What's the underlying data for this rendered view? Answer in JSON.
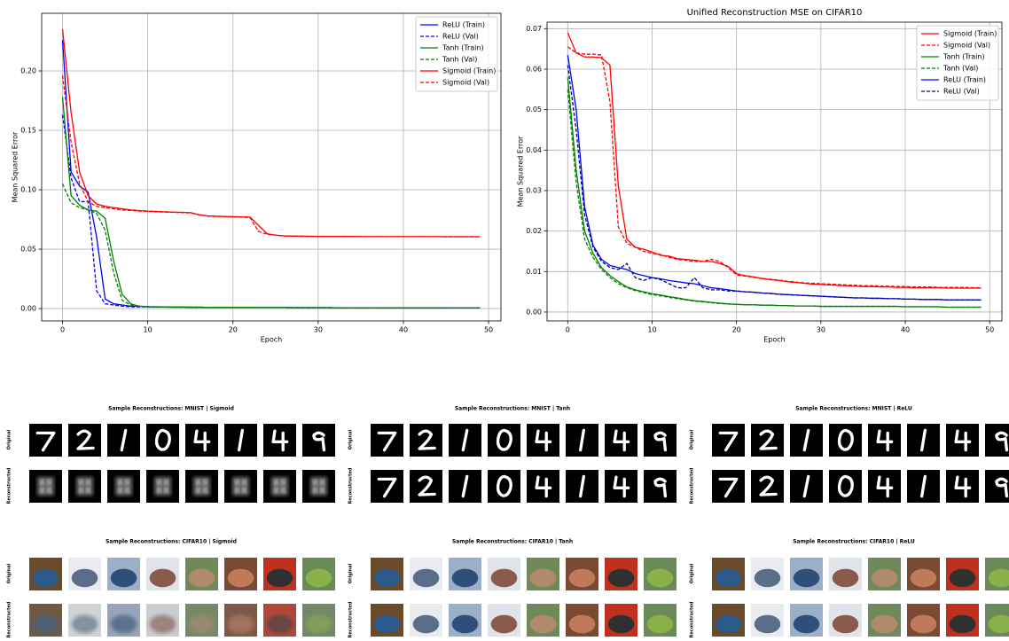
{
  "chart_data": [
    {
      "type": "line",
      "xlabel": "Epoch",
      "ylabel": "Mean Squared Error",
      "x": [
        0,
        1,
        2,
        3,
        4,
        5,
        6,
        7,
        8,
        9,
        10,
        11,
        12,
        13,
        14,
        15,
        16,
        17,
        18,
        19,
        20,
        21,
        22,
        23,
        24,
        25,
        26,
        27,
        28,
        29,
        30,
        31,
        32,
        33,
        34,
        35,
        36,
        37,
        38,
        39,
        40,
        41,
        42,
        43,
        44,
        45,
        46,
        47,
        48,
        49
      ],
      "xlim": [
        -2.45,
        51.45
      ],
      "xticks": [
        0,
        10,
        20,
        30,
        40,
        50
      ],
      "ylim": [
        -0.0104,
        0.2485
      ],
      "yticks": [
        {
          "value": 0,
          "label": "0.00"
        },
        0.05,
        {
          "value": 0.1,
          "label": "0.10"
        },
        0.15,
        {
          "value": 0.2,
          "label": "0.20"
        }
      ],
      "grid": true,
      "legend": "upper right",
      "series": [
        {
          "name": "ReLU (Train)",
          "color": "#0000ff",
          "linestyle": "solid",
          "values": [
            0.226,
            0.115,
            0.103,
            0.098,
            0.06,
            0.008,
            0.004,
            0.003,
            0.002,
            0.002,
            0.0015,
            0.0014,
            0.0013,
            0.0012,
            0.0012,
            0.0011,
            0.0011,
            0.0011,
            0.001,
            0.001,
            0.001,
            0.001,
            0.001,
            0.0009,
            0.0009,
            0.0009,
            0.0009,
            0.0008,
            0.0008,
            0.0008,
            0.0008,
            0.0008,
            0.0007,
            0.0007,
            0.0007,
            0.0007,
            0.0007,
            0.0007,
            0.0006,
            0.0006,
            0.0006,
            0.0006,
            0.0006,
            0.0006,
            0.0006,
            0.0005,
            0.0005,
            0.0005,
            0.0005,
            0.0005
          ]
        },
        {
          "name": "ReLU (Val)",
          "color": "#0000ff",
          "linestyle": "dashed",
          "values": [
            0.163,
            0.11,
            0.09,
            0.09,
            0.015,
            0.004,
            0.003,
            0.002,
            0.0015,
            0.0014,
            0.0015,
            0.0014,
            0.0013,
            0.0012,
            0.0012,
            0.0011,
            0.0011,
            0.0011,
            0.001,
            0.001,
            0.001,
            0.001,
            0.001,
            0.0009,
            0.0009,
            0.0009,
            0.0009,
            0.0008,
            0.0008,
            0.0008,
            0.0008,
            0.0008,
            0.0007,
            0.0007,
            0.0007,
            0.0007,
            0.0007,
            0.0007,
            0.0006,
            0.0006,
            0.0006,
            0.0006,
            0.0006,
            0.0006,
            0.0006,
            0.0005,
            0.0005,
            0.0005,
            0.0005,
            0.0005
          ]
        },
        {
          "name": "Tanh (Train)",
          "color": "#008000",
          "linestyle": "solid",
          "values": [
            0.178,
            0.095,
            0.087,
            0.083,
            0.082,
            0.076,
            0.04,
            0.012,
            0.004,
            0.002,
            0.0016,
            0.0015,
            0.0014,
            0.0013,
            0.0013,
            0.0012,
            0.0012,
            0.0011,
            0.0011,
            0.001,
            0.001,
            0.001,
            0.001,
            0.0009,
            0.0009,
            0.0009,
            0.0009,
            0.0008,
            0.0008,
            0.0008,
            0.0008,
            0.0008,
            0.0007,
            0.0007,
            0.0007,
            0.0007,
            0.0007,
            0.0007,
            0.0006,
            0.0006,
            0.0006,
            0.0006,
            0.0006,
            0.0006,
            0.0006,
            0.0005,
            0.0005,
            0.0005,
            0.0005,
            0.0005
          ]
        },
        {
          "name": "Tanh (Val)",
          "color": "#008000",
          "linestyle": "dashed",
          "values": [
            0.105,
            0.089,
            0.085,
            0.083,
            0.08,
            0.066,
            0.03,
            0.007,
            0.003,
            0.002,
            0.0016,
            0.0015,
            0.0014,
            0.0013,
            0.0013,
            0.0012,
            0.0012,
            0.0011,
            0.0011,
            0.001,
            0.001,
            0.001,
            0.001,
            0.0009,
            0.0009,
            0.0009,
            0.0009,
            0.0008,
            0.0008,
            0.0008,
            0.0008,
            0.0008,
            0.0007,
            0.0007,
            0.0007,
            0.0007,
            0.0007,
            0.0007,
            0.0006,
            0.0006,
            0.0006,
            0.0006,
            0.0006,
            0.0006,
            0.0006,
            0.0005,
            0.0005,
            0.0005,
            0.0005,
            0.0005
          ]
        },
        {
          "name": "Sigmoid (Train)",
          "color": "#ff0000",
          "linestyle": "solid",
          "values": [
            0.235,
            0.165,
            0.115,
            0.095,
            0.088,
            0.086,
            0.085,
            0.084,
            0.083,
            0.0825,
            0.082,
            0.0817,
            0.0814,
            0.0812,
            0.081,
            0.0808,
            0.079,
            0.078,
            0.0778,
            0.0775,
            0.0773,
            0.0772,
            0.077,
            0.07,
            0.063,
            0.0618,
            0.0612,
            0.061,
            0.0609,
            0.0608,
            0.0607,
            0.0607,
            0.0607,
            0.0607,
            0.0607,
            0.0606,
            0.0606,
            0.0606,
            0.0606,
            0.0606,
            0.0606,
            0.0606,
            0.0606,
            0.0606,
            0.0606,
            0.0605,
            0.0605,
            0.0605,
            0.0605,
            0.0605
          ]
        },
        {
          "name": "Sigmoid (Val)",
          "color": "#ff0000",
          "linestyle": "dashed",
          "values": [
            0.196,
            0.14,
            0.105,
            0.09,
            0.086,
            0.085,
            0.084,
            0.083,
            0.0825,
            0.082,
            0.0818,
            0.0815,
            0.0812,
            0.081,
            0.0808,
            0.0805,
            0.079,
            0.0778,
            0.0776,
            0.0774,
            0.0772,
            0.077,
            0.0765,
            0.065,
            0.0625,
            0.0618,
            0.0612,
            0.061,
            0.0609,
            0.0608,
            0.0607,
            0.0607,
            0.0607,
            0.0607,
            0.0607,
            0.0606,
            0.0606,
            0.0606,
            0.0606,
            0.0606,
            0.0606,
            0.0606,
            0.0606,
            0.0606,
            0.0606,
            0.0605,
            0.0605,
            0.0605,
            0.0605,
            0.0605
          ]
        }
      ]
    },
    {
      "type": "line",
      "title": "Unified Reconstruction MSE on CIFAR10",
      "xlabel": "Epoch",
      "ylabel": "Mean Squared Error",
      "x": [
        0,
        1,
        2,
        3,
        4,
        5,
        6,
        7,
        8,
        9,
        10,
        11,
        12,
        13,
        14,
        15,
        16,
        17,
        18,
        19,
        20,
        21,
        22,
        23,
        24,
        25,
        26,
        27,
        28,
        29,
        30,
        31,
        32,
        33,
        34,
        35,
        36,
        37,
        38,
        39,
        40,
        41,
        42,
        43,
        44,
        45,
        46,
        47,
        48,
        49
      ],
      "xlim": [
        -2.45,
        51.45
      ],
      "xticks": [
        0,
        10,
        20,
        30,
        40,
        50
      ],
      "ylim": [
        -0.0022,
        0.0716
      ],
      "yticks": [
        {
          "value": 0,
          "label": "0.00"
        },
        0.01,
        0.02,
        0.03,
        0.04,
        0.05,
        0.06,
        0.07
      ],
      "grid": true,
      "legend": "upper right",
      "series": [
        {
          "name": "Sigmoid (Train)",
          "color": "#ff0000",
          "linestyle": "solid",
          "values": [
            0.069,
            0.064,
            0.063,
            0.063,
            0.0628,
            0.061,
            0.031,
            0.018,
            0.016,
            0.0155,
            0.0148,
            0.014,
            0.0138,
            0.0132,
            0.013,
            0.0128,
            0.0125,
            0.0125,
            0.012,
            0.0113,
            0.0095,
            0.009,
            0.0087,
            0.0083,
            0.008,
            0.0078,
            0.0075,
            0.0073,
            0.0071,
            0.0069,
            0.0068,
            0.0067,
            0.0066,
            0.0065,
            0.0064,
            0.0063,
            0.0063,
            0.0062,
            0.0062,
            0.0061,
            0.0061,
            0.006,
            0.006,
            0.006,
            0.006,
            0.0059,
            0.0059,
            0.0059,
            0.0059,
            0.0059
          ]
        },
        {
          "name": "Sigmoid (Val)",
          "color": "#ff0000",
          "linestyle": "dashed",
          "values": [
            0.0655,
            0.064,
            0.0637,
            0.0637,
            0.0635,
            0.052,
            0.021,
            0.017,
            0.016,
            0.015,
            0.0145,
            0.0142,
            0.0135,
            0.013,
            0.0128,
            0.0125,
            0.0125,
            0.013,
            0.0125,
            0.011,
            0.0092,
            0.0089,
            0.0086,
            0.0083,
            0.0081,
            0.0079,
            0.0076,
            0.0074,
            0.0072,
            0.0071,
            0.007,
            0.0069,
            0.0068,
            0.0067,
            0.0066,
            0.0065,
            0.0065,
            0.0064,
            0.0064,
            0.0063,
            0.0063,
            0.0062,
            0.0062,
            0.0062,
            0.0061,
            0.0061,
            0.0061,
            0.0061,
            0.006,
            0.006
          ]
        },
        {
          "name": "Tanh (Train)",
          "color": "#008000",
          "linestyle": "solid",
          "values": [
            0.058,
            0.035,
            0.02,
            0.0145,
            0.011,
            0.009,
            0.0075,
            0.0062,
            0.0055,
            0.005,
            0.0045,
            0.0042,
            0.0038,
            0.0035,
            0.0031,
            0.0028,
            0.0026,
            0.0024,
            0.0022,
            0.002,
            0.0019,
            0.0018,
            0.0018,
            0.0017,
            0.0017,
            0.0016,
            0.0016,
            0.0015,
            0.0015,
            0.0015,
            0.0014,
            0.0014,
            0.0014,
            0.0014,
            0.0014,
            0.0014,
            0.0014,
            0.0014,
            0.0014,
            0.0014,
            0.0013,
            0.0013,
            0.0013,
            0.0013,
            0.0013,
            0.0012,
            0.0012,
            0.0012,
            0.0012,
            0.0012
          ]
        },
        {
          "name": "Tanh (Val)",
          "color": "#008000",
          "linestyle": "dashed",
          "values": [
            0.055,
            0.032,
            0.018,
            0.0135,
            0.0105,
            0.0085,
            0.007,
            0.006,
            0.0053,
            0.0048,
            0.0043,
            0.004,
            0.0036,
            0.0033,
            0.003,
            0.0027,
            0.0025,
            0.0023,
            0.0021,
            0.002,
            0.0019,
            0.0018,
            0.0018,
            0.0017,
            0.0017,
            0.0016,
            0.0016,
            0.0015,
            0.0015,
            0.0015,
            0.0014,
            0.0014,
            0.0014,
            0.0014,
            0.0014,
            0.0014,
            0.0014,
            0.0014,
            0.0014,
            0.0014,
            0.0013,
            0.0013,
            0.0013,
            0.0013,
            0.0013,
            0.0012,
            0.0012,
            0.0012,
            0.0012,
            0.0012
          ]
        },
        {
          "name": "ReLU (Train)",
          "color": "#0000ff",
          "linestyle": "solid",
          "values": [
            0.0635,
            0.05,
            0.026,
            0.0165,
            0.013,
            0.0115,
            0.011,
            0.0105,
            0.0095,
            0.009,
            0.0085,
            0.0082,
            0.0078,
            0.0075,
            0.0072,
            0.007,
            0.0065,
            0.006,
            0.0058,
            0.0055,
            0.0052,
            0.005,
            0.0049,
            0.0047,
            0.0046,
            0.0044,
            0.0043,
            0.0042,
            0.0041,
            0.004,
            0.0039,
            0.0038,
            0.0037,
            0.0036,
            0.0035,
            0.0035,
            0.0034,
            0.0034,
            0.0033,
            0.0033,
            0.0032,
            0.0032,
            0.0031,
            0.0031,
            0.0031,
            0.003,
            0.003,
            0.003,
            0.003,
            0.003
          ]
        },
        {
          "name": "ReLU (Val)",
          "color": "#00008b",
          "linestyle": "dashed",
          "values": [
            0.061,
            0.045,
            0.024,
            0.016,
            0.0125,
            0.011,
            0.0105,
            0.012,
            0.0085,
            0.0078,
            0.0085,
            0.008,
            0.007,
            0.006,
            0.006,
            0.0085,
            0.006,
            0.0055,
            0.0055,
            0.0052,
            0.0052,
            0.005,
            0.0049,
            0.0047,
            0.0046,
            0.0044,
            0.0043,
            0.0042,
            0.0041,
            0.004,
            0.0039,
            0.0038,
            0.0037,
            0.0036,
            0.0035,
            0.0035,
            0.0034,
            0.0034,
            0.0033,
            0.0033,
            0.0032,
            0.0032,
            0.0031,
            0.0031,
            0.0031,
            0.003,
            0.003,
            0.003,
            0.003,
            0.003
          ]
        }
      ]
    }
  ],
  "panels": [
    {
      "title": "Sample Reconstructions: MNIST | Sigmoid",
      "rows": [
        "Original",
        "Reconstructed"
      ]
    },
    {
      "title": "Sample Reconstructions: MNIST | Tanh",
      "rows": [
        "Original",
        "Reconstructed"
      ]
    },
    {
      "title": "Sample Reconstructions: MNIST | ReLU",
      "rows": [
        "Original",
        "Reconstructed"
      ]
    },
    {
      "title": "Sample Reconstructions: CIFAR10 | Sigmoid",
      "rows": [
        "Original",
        "Reconstructed"
      ]
    },
    {
      "title": "Sample Reconstructions: CIFAR10 | Tanh",
      "rows": [
        "Original",
        "Reconstructed"
      ]
    },
    {
      "title": "Sample Reconstructions: CIFAR10 | ReLU",
      "rows": [
        "Original",
        "Reconstructed"
      ]
    }
  ]
}
